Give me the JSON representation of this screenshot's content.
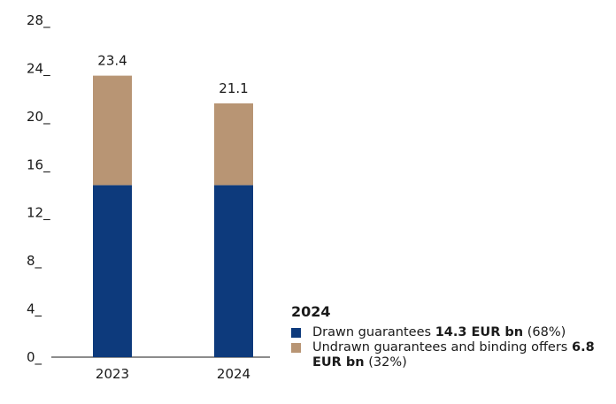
{
  "chart_data": {
    "type": "bar",
    "stacked": true,
    "categories": [
      "2023",
      "2024"
    ],
    "series": [
      {
        "values": [
          14.3,
          14.3
        ],
        "color": "#0d3a7c"
      },
      {
        "values": [
          9.1,
          6.8
        ],
        "color": "#b89574"
      }
    ],
    "totals": [
      "23.4",
      "21.1"
    ],
    "yticks": [
      "0",
      "4",
      "8",
      "12",
      "16",
      "20",
      "24",
      "28"
    ],
    "ylim": [
      0,
      28
    ],
    "title": "",
    "xlabel": "",
    "ylabel": ""
  },
  "legend": {
    "title": "2024",
    "items": [
      {
        "prefix": "Drawn guarantees ",
        "value": "14.3 EUR bn",
        "suffix": " (68%)",
        "color": "#0d3a7c"
      },
      {
        "prefix": "Undrawn guarantees and binding offers ",
        "value": "6.8 EUR bn",
        "suffix": " (32%)",
        "color": "#b89574"
      }
    ]
  }
}
